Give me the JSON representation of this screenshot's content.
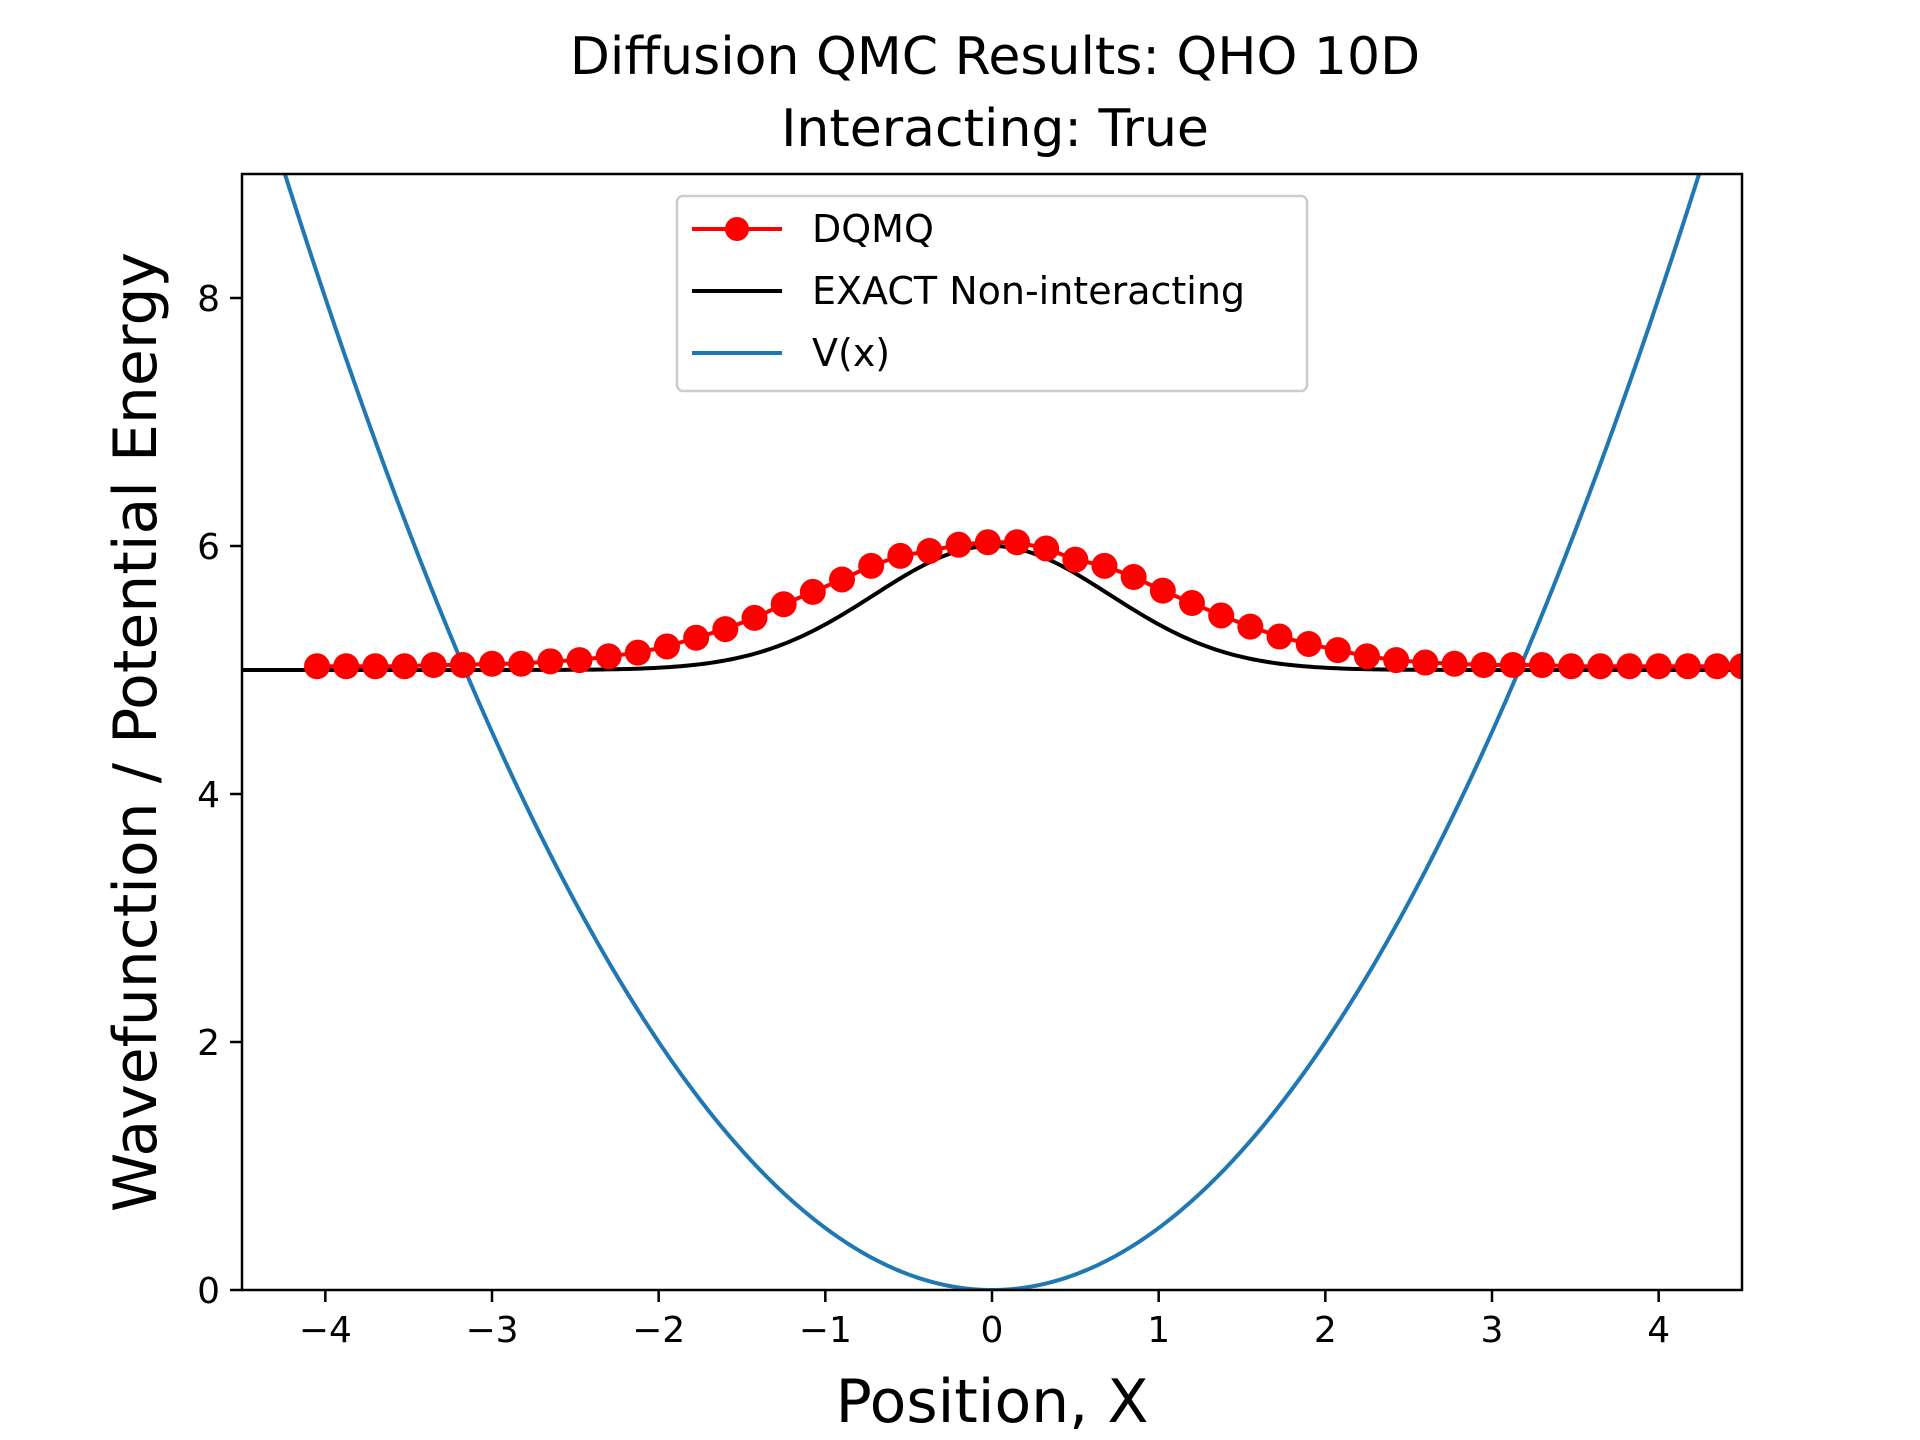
{
  "chart_data": {
    "type": "line",
    "title": "Diffusion QMC Results: QHO 10D",
    "subtitle": "Interacting: True",
    "xlabel": "Position, X",
    "ylabel": "Wavefunction / Potential Energy",
    "xlim": [
      -4.5,
      4.5
    ],
    "ylim": [
      0,
      9
    ],
    "xticks": [
      -4,
      -3,
      -2,
      -1,
      0,
      1,
      2,
      3,
      4
    ],
    "xtick_labels": [
      "−4",
      "−3",
      "−2",
      "−1",
      "0",
      "1",
      "2",
      "3",
      "4"
    ],
    "yticks": [
      0,
      2,
      4,
      6,
      8
    ],
    "ytick_labels": [
      "0",
      "2",
      "4",
      "6",
      "8"
    ],
    "grid": false,
    "legend_position": "upper-center",
    "series": [
      {
        "name": "DQMQ",
        "color": "#ff0000",
        "style": "line-with-circle-markers",
        "x": [
          -4.05,
          -3.875,
          -3.7,
          -3.525,
          -3.35,
          -3.175,
          -3.0,
          -2.825,
          -2.65,
          -2.475,
          -2.3,
          -2.125,
          -1.95,
          -1.775,
          -1.6,
          -1.425,
          -1.25,
          -1.075,
          -0.9,
          -0.725,
          -0.55,
          -0.375,
          -0.2,
          -0.025,
          0.15,
          0.325,
          0.5,
          0.675,
          0.85,
          1.025,
          1.2,
          1.375,
          1.55,
          1.725,
          1.9,
          2.075,
          2.25,
          2.425,
          2.6,
          2.775,
          2.95,
          3.125,
          3.3,
          3.475,
          3.65,
          3.825,
          4.0,
          4.175,
          4.35,
          4.5
        ],
        "y": [
          5.03,
          5.03,
          5.03,
          5.03,
          5.04,
          5.04,
          5.05,
          5.05,
          5.07,
          5.08,
          5.11,
          5.14,
          5.19,
          5.26,
          5.33,
          5.42,
          5.53,
          5.63,
          5.73,
          5.84,
          5.92,
          5.96,
          6.01,
          6.03,
          6.03,
          5.98,
          5.89,
          5.84,
          5.75,
          5.64,
          5.54,
          5.44,
          5.35,
          5.27,
          5.21,
          5.16,
          5.11,
          5.08,
          5.06,
          5.05,
          5.04,
          5.04,
          5.04,
          5.03,
          5.03,
          5.03,
          5.03,
          5.03,
          5.03,
          5.03
        ]
      },
      {
        "name": "EXACT Non-interacting",
        "color": "#000000",
        "style": "line",
        "function": "5 + exp(-x^2)",
        "x_range": [
          -4.5,
          4.5
        ]
      },
      {
        "name": "V(x)",
        "color": "#1f77b4",
        "style": "line",
        "function": "0.5 * x^2",
        "x_range": [
          -4.5,
          4.5
        ]
      }
    ]
  }
}
